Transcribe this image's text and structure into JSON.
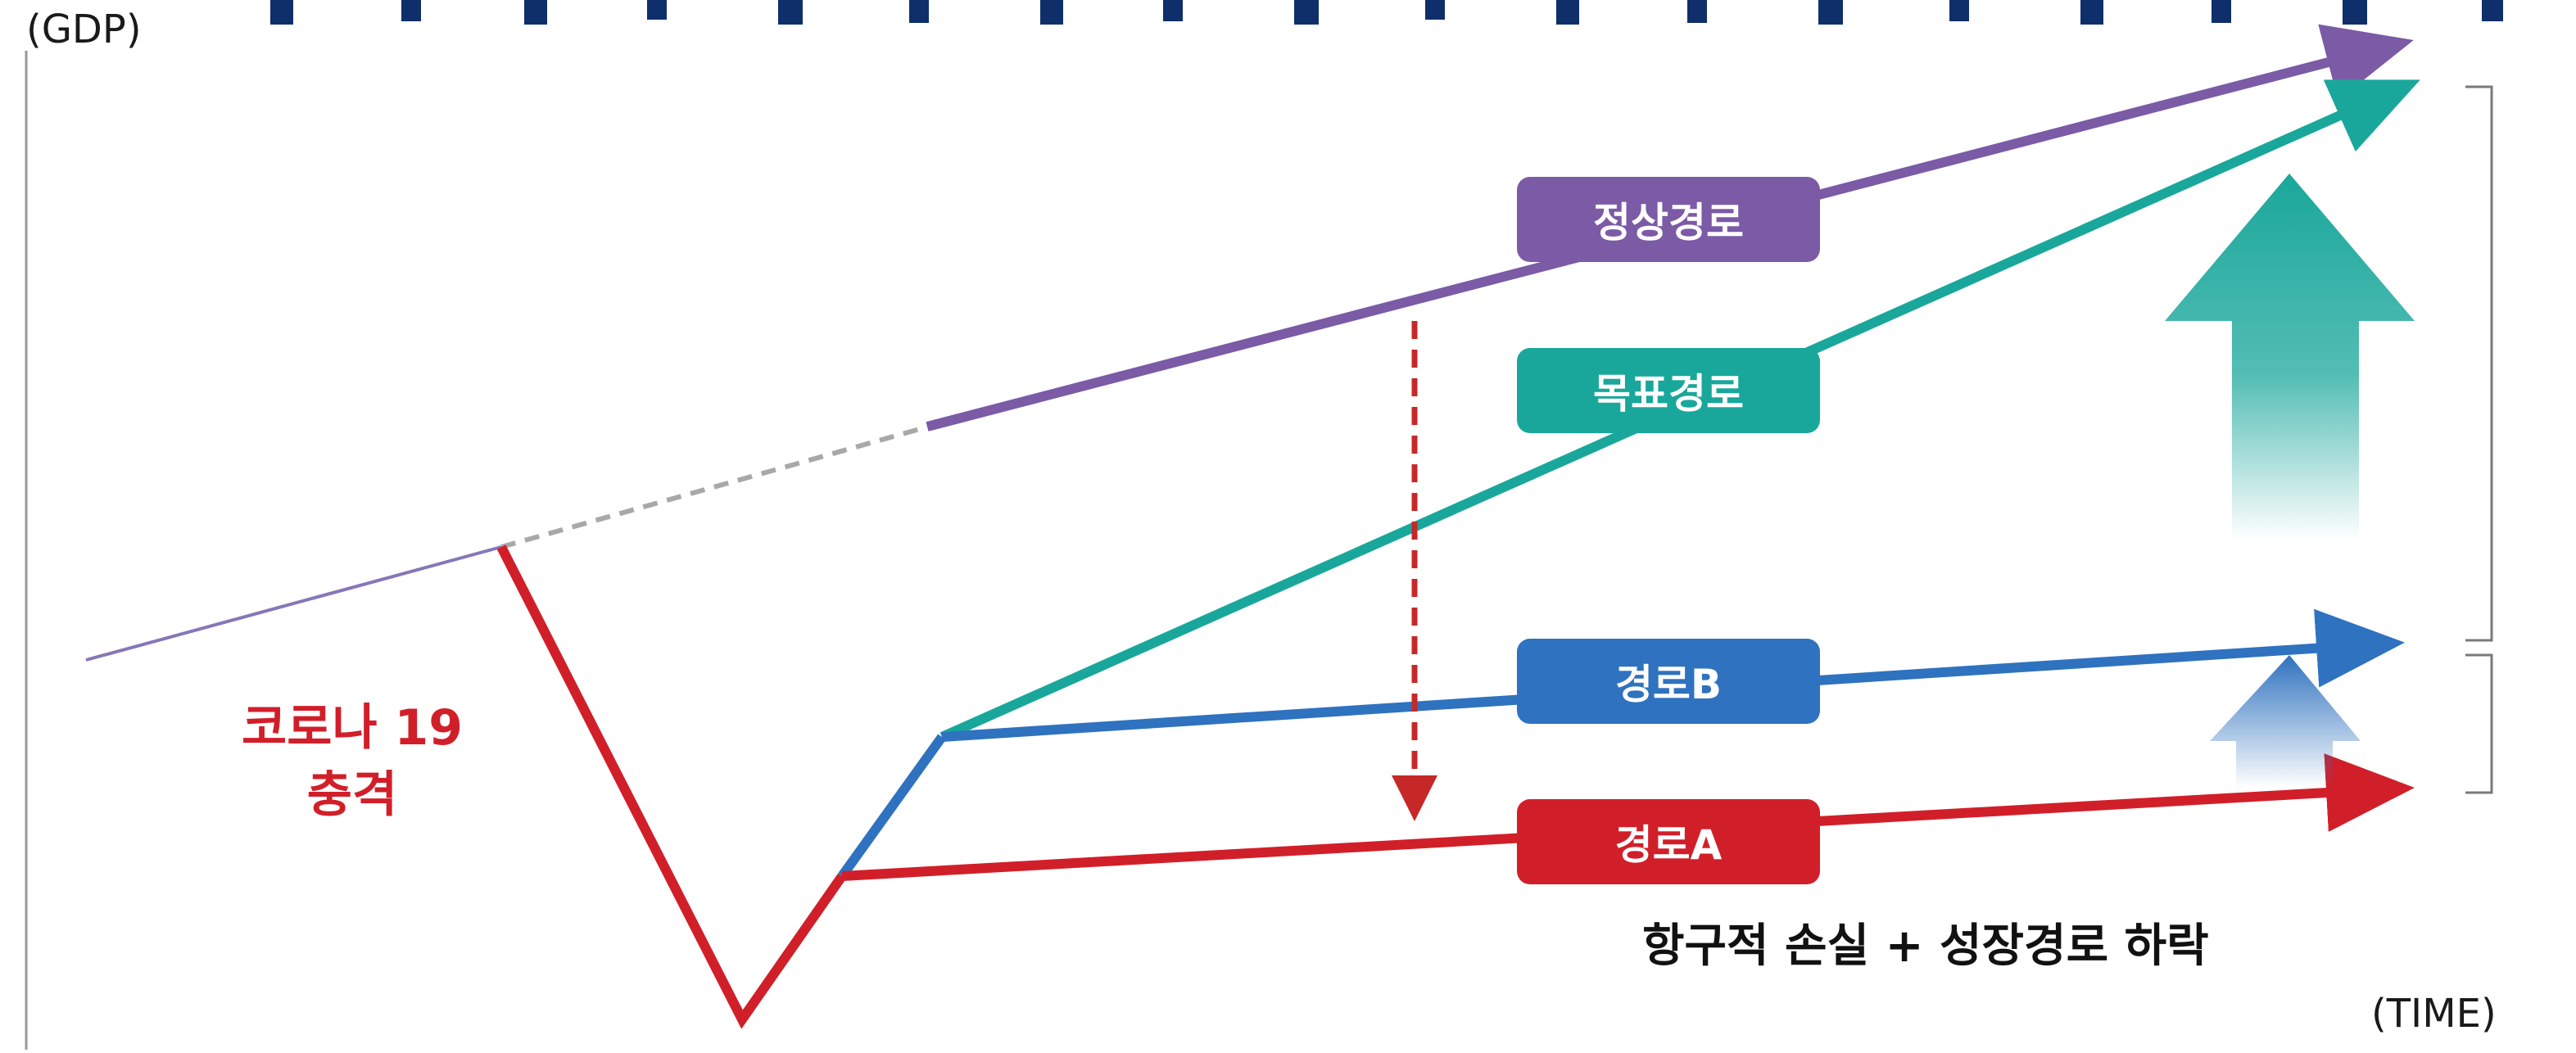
{
  "header": {
    "title_fragment": ""
  },
  "axes": {
    "y_label": "(GDP)",
    "x_label": "(TIME)"
  },
  "shock": {
    "line1": "코로나 19",
    "line2": "충격"
  },
  "paths": {
    "normal": {
      "label": "정상경로",
      "color": "#7b5aa6"
    },
    "target": {
      "label": "목표경로",
      "color": "#1aa79b"
    },
    "b": {
      "label": "경로B",
      "color": "#2f72bf"
    },
    "a": {
      "label": "경로A",
      "color": "#d11f2a"
    }
  },
  "note": "항구적 손실 + 성장경로 하락",
  "colors": {
    "pre_trend": "#8677b8",
    "dashed_trend": "#a8a8a8",
    "drop_arrow": "#c62828",
    "title": "#0f2f6b",
    "bracket": "#7a7a7a"
  }
}
